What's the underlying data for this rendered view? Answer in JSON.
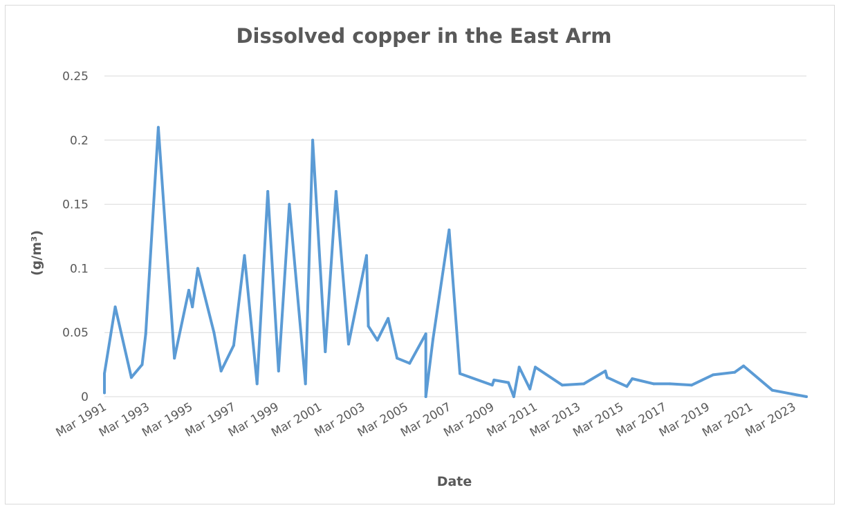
{
  "chart_data": {
    "type": "line",
    "title": "Dissolved copper in the East Arm",
    "xlabel": "Date",
    "ylabel": "(g/m³)",
    "ylim": [
      0,
      0.25
    ],
    "y_ticks": [
      "0",
      "0.05",
      "0.1",
      "0.15",
      "0.2",
      "0.25"
    ],
    "x_ticks": [
      "Mar 1991",
      "Mar 1993",
      "Mar 1995",
      "Mar 1997",
      "Mar 1999",
      "Mar 2001",
      "Mar 2003",
      "Mar 2005",
      "Mar 2007",
      "Mar 2009",
      "Mar 2011",
      "Mar 2013",
      "Mar 2015",
      "Mar 2017",
      "Mar 2019",
      "Mar 2021",
      "Mar 2023"
    ],
    "xlim": [
      "1991-03",
      "2023-10"
    ],
    "grid": true,
    "legend": "none",
    "line_color": "#5b9bd5",
    "series": [
      {
        "x": [
          "1991-03",
          "1991-03",
          "1991-09",
          "1992-06",
          "1992-12",
          "1993-02",
          "1993-09",
          "1994-06",
          "1995-02",
          "1995-04",
          "1995-07",
          "1996-04",
          "1996-08",
          "1997-03",
          "1997-09",
          "1998-04",
          "1998-10",
          "1999-04",
          "1999-10",
          "2000-07",
          "2000-11",
          "2001-06",
          "2001-12",
          "2002-07",
          "2003-05",
          "2003-06",
          "2003-11",
          "2004-05",
          "2004-10",
          "2005-05",
          "2006-02",
          "2006-02",
          "2006-06",
          "2007-03",
          "2007-09",
          "2009-03",
          "2009-04",
          "2009-12",
          "2010-03",
          "2010-06",
          "2010-12",
          "2011-03",
          "2012-06",
          "2013-06",
          "2014-06",
          "2014-07",
          "2015-06",
          "2015-09",
          "2016-09",
          "2017-06",
          "2018-06",
          "2019-06",
          "2020-06",
          "2020-11",
          "2022-03",
          "2023-10"
        ],
        "y": [
          0.003,
          0.018,
          0.07,
          0.015,
          0.025,
          0.049,
          0.21,
          0.03,
          0.083,
          0.07,
          0.1,
          0.05,
          0.02,
          0.04,
          0.11,
          0.01,
          0.16,
          0.02,
          0.15,
          0.01,
          0.2,
          0.035,
          0.16,
          0.041,
          0.11,
          0.055,
          0.044,
          0.061,
          0.03,
          0.026,
          0.049,
          0.0,
          0.045,
          0.13,
          0.018,
          0.009,
          0.013,
          0.011,
          0.0,
          0.023,
          0.006,
          0.023,
          0.009,
          0.01,
          0.02,
          0.015,
          0.008,
          0.014,
          0.01,
          0.01,
          0.009,
          0.017,
          0.019,
          0.024,
          0.005,
          0.0
        ]
      }
    ]
  }
}
